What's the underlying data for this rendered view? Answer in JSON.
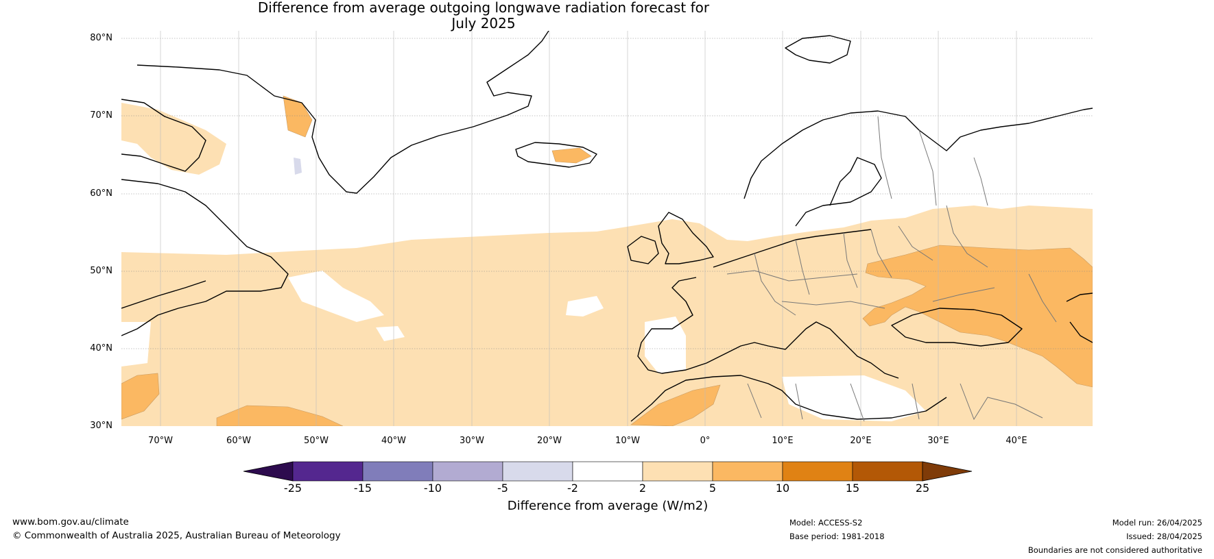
{
  "title": {
    "line1": "Difference from average outgoing longwave radiation forecast for",
    "line2": "July 2025"
  },
  "map": {
    "lat_labels": [
      "80°N",
      "70°N",
      "60°N",
      "50°N",
      "40°N",
      "30°N"
    ],
    "lon_labels": [
      "70°W",
      "60°W",
      "50°W",
      "40°W",
      "30°W",
      "20°W",
      "10°W",
      "0°",
      "10°E",
      "20°E",
      "30°E",
      "40°E"
    ]
  },
  "colorbar": {
    "ticks": [
      "-25",
      "-15",
      "-10",
      "-5",
      "-2",
      "2",
      "5",
      "10",
      "15",
      "25"
    ],
    "colors": [
      "#2d0b4e",
      "#54278f",
      "#807dba",
      "#b2abd2",
      "#d8daeb",
      "#ffffff",
      "#fde0b3",
      "#fbb862",
      "#e08214",
      "#b35806",
      "#7f3b08"
    ],
    "label": "Difference from average (W/m2)"
  },
  "footer": {
    "url": "www.bom.gov.au/climate",
    "copyright": "© Commonwealth of Australia 2025, Australian Bureau of Meteorology",
    "model": "Model: ACCESS-S2",
    "base_period": "Base period: 1981-2018",
    "model_run": "Model run: 26/04/2025",
    "issued": "Issued: 28/04/2025",
    "disclaimer": "Boundaries are not considered authoritative"
  }
}
